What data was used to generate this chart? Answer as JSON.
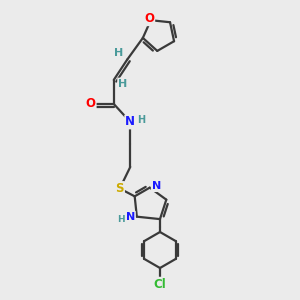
{
  "background_color": "#ebebeb",
  "bond_color": "#3a3a3a",
  "atom_colors": {
    "O": "#ff0000",
    "N": "#1a1aff",
    "S": "#ccaa00",
    "Cl": "#33bb33",
    "H": "#4a9a9a",
    "C": "#3a3a3a"
  },
  "line_width": 1.6,
  "font_size": 8.5
}
